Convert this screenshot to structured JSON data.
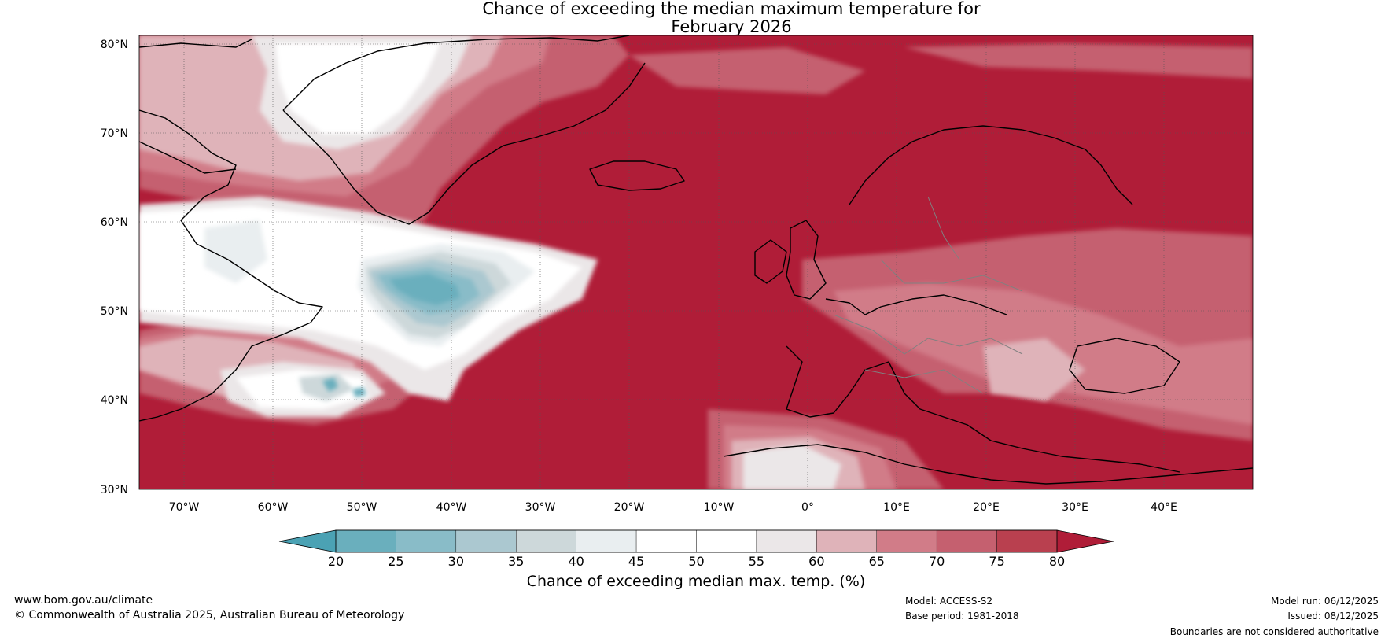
{
  "title": {
    "line1": "Chance of exceeding the median maximum temperature for",
    "line2": "February 2026"
  },
  "map": {
    "lat_labels": [
      "80°N",
      "70°N",
      "60°N",
      "50°N",
      "40°N",
      "30°N"
    ],
    "lat_values": [
      80,
      70,
      60,
      50,
      40,
      30
    ],
    "lon_labels": [
      "70°W",
      "60°W",
      "50°W",
      "40°W",
      "30°W",
      "20°W",
      "10°W",
      "0°",
      "10°E",
      "20°E",
      "30°E",
      "40°E"
    ],
    "lon_values": [
      -70,
      -60,
      -50,
      -40,
      -30,
      -20,
      -10,
      0,
      10,
      20,
      30,
      40
    ],
    "extent": {
      "lon_min": -75,
      "lon_max": 50,
      "lat_min": 30,
      "lat_max": 81
    }
  },
  "colorbar": {
    "ticks": [
      "20",
      "25",
      "30",
      "35",
      "40",
      "45",
      "50",
      "55",
      "60",
      "65",
      "70",
      "75",
      "80"
    ],
    "colors": [
      "#4ba2b4",
      "#6aafbd",
      "#89bcc8",
      "#abc8d0",
      "#cdd8da",
      "#e9eef0",
      "#ffffff",
      "#ffffff",
      "#ebe7e8",
      "#dfb3b9",
      "#d17c88",
      "#c5606f",
      "#b9404f",
      "#b01d38"
    ],
    "label": "Chance of exceeding median max. temp. (%)"
  },
  "footer": {
    "website": "www.bom.gov.au/climate",
    "copyright": "© Commonwealth of Australia 2025, Australian Bureau of Meteorology",
    "model": "Model: ACCESS-S2",
    "base_period": "Base period: 1981-2018",
    "model_run": "Model run: 06/12/2025",
    "issued": "Issued: 08/12/2025",
    "disclaimer": "Boundaries are not considered authoritative"
  }
}
